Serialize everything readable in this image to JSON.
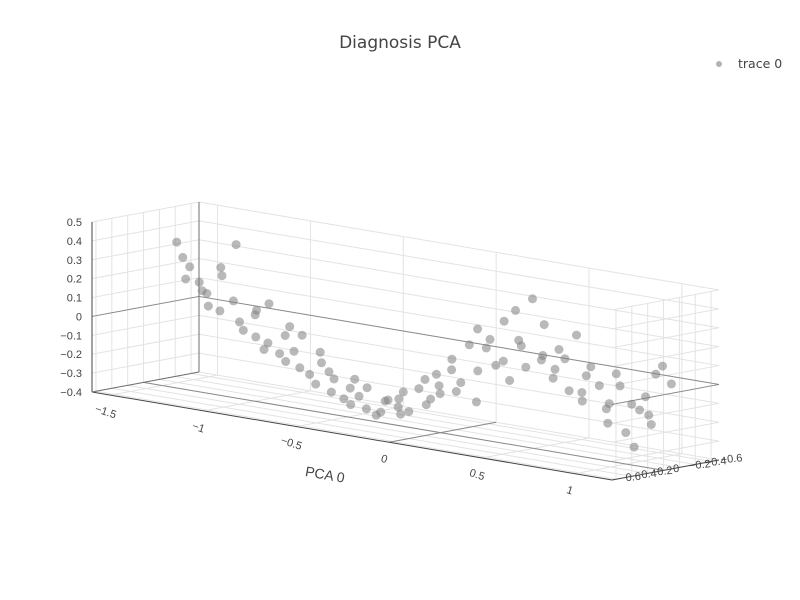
{
  "chart_data": {
    "type": "scatter",
    "title": "Diagnosis PCA",
    "legend": {
      "position": "top-right",
      "entries": [
        "trace 0"
      ]
    },
    "series": [
      {
        "name": "trace 0",
        "color": "#7f7f7f",
        "points": [
          {
            "x": -1.4,
            "y": 0.05,
            "z": 0.38
          },
          {
            "x": -1.38,
            "y": 0.02,
            "z": 0.3
          },
          {
            "x": -1.36,
            "y": -0.02,
            "z": 0.25
          },
          {
            "x": -1.33,
            "y": 0.1,
            "z": 0.2
          },
          {
            "x": -1.3,
            "y": 0.0,
            "z": 0.18
          },
          {
            "x": -1.28,
            "y": -0.05,
            "z": 0.12
          },
          {
            "x": -1.25,
            "y": 0.08,
            "z": 0.15
          },
          {
            "x": -1.22,
            "y": -0.1,
            "z": 0.22
          },
          {
            "x": -1.2,
            "y": 0.12,
            "z": 0.08
          },
          {
            "x": -1.18,
            "y": 0.02,
            "z": 0.05
          },
          {
            "x": -1.15,
            "y": -0.08,
            "z": 0.1
          },
          {
            "x": -1.12,
            "y": 0.15,
            "z": 0.3
          },
          {
            "x": -1.1,
            "y": -0.04,
            "z": 0.0
          },
          {
            "x": -1.08,
            "y": 0.05,
            "z": 0.42
          },
          {
            "x": -1.05,
            "y": -0.12,
            "z": 0.04
          },
          {
            "x": -1.02,
            "y": 0.1,
            "z": -0.02
          },
          {
            "x": -1.0,
            "y": -0.02,
            "z": 0.08
          },
          {
            "x": -0.97,
            "y": 0.06,
            "z": -0.05
          },
          {
            "x": -0.95,
            "y": -0.06,
            "z": 0.12
          },
          {
            "x": -0.93,
            "y": 0.0,
            "z": -0.08
          },
          {
            "x": -0.9,
            "y": 0.12,
            "z": -0.1
          },
          {
            "x": -0.88,
            "y": -0.1,
            "z": -0.04
          },
          {
            "x": -0.85,
            "y": 0.04,
            "z": -0.12
          },
          {
            "x": -0.83,
            "y": -0.04,
            "z": 0.02
          },
          {
            "x": -0.8,
            "y": 0.08,
            "z": -0.15
          },
          {
            "x": -0.78,
            "y": -0.08,
            "z": -0.02
          },
          {
            "x": -0.75,
            "y": 0.02,
            "z": -0.18
          },
          {
            "x": -0.73,
            "y": 0.14,
            "z": -0.08
          },
          {
            "x": -0.7,
            "y": -0.12,
            "z": -0.1
          },
          {
            "x": -0.68,
            "y": 0.06,
            "z": -0.2
          },
          {
            "x": -0.65,
            "y": -0.02,
            "z": -0.14
          },
          {
            "x": -0.63,
            "y": 0.1,
            "z": -0.24
          },
          {
            "x": -0.6,
            "y": -0.06,
            "z": -0.22
          },
          {
            "x": -0.58,
            "y": 0.02,
            "z": -0.28
          },
          {
            "x": -0.55,
            "y": 0.12,
            "z": -0.16
          },
          {
            "x": -0.53,
            "y": -0.1,
            "z": -0.26
          },
          {
            "x": -0.5,
            "y": 0.05,
            "z": -0.3
          },
          {
            "x": -0.48,
            "y": -0.04,
            "z": -0.2
          },
          {
            "x": -0.45,
            "y": 0.08,
            "z": -0.32
          },
          {
            "x": -0.43,
            "y": -0.08,
            "z": -0.24
          },
          {
            "x": -0.4,
            "y": 0.0,
            "z": -0.34
          },
          {
            "x": -0.38,
            "y": 0.14,
            "z": -0.26
          },
          {
            "x": -0.35,
            "y": -0.12,
            "z": -0.3
          },
          {
            "x": -0.33,
            "y": 0.04,
            "z": -0.36
          },
          {
            "x": -0.3,
            "y": -0.04,
            "z": -0.28
          },
          {
            "x": -0.28,
            "y": 0.1,
            "z": -0.33
          },
          {
            "x": -0.25,
            "y": -0.08,
            "z": -0.35
          },
          {
            "x": -0.22,
            "y": 0.02,
            "z": -0.3
          },
          {
            "x": -0.2,
            "y": 0.06,
            "z": -0.25
          },
          {
            "x": -0.18,
            "y": -0.02,
            "z": -0.32
          },
          {
            "x": -0.15,
            "y": 0.12,
            "z": -0.2
          },
          {
            "x": -0.12,
            "y": -0.1,
            "z": -0.28
          },
          {
            "x": -0.1,
            "y": 0.04,
            "z": -0.18
          },
          {
            "x": -0.08,
            "y": -0.06,
            "z": -0.24
          },
          {
            "x": -0.05,
            "y": 0.08,
            "z": -0.12
          },
          {
            "x": -0.02,
            "y": -0.04,
            "z": -0.2
          },
          {
            "x": 0.0,
            "y": 0.02,
            "z": -0.15
          },
          {
            "x": 0.02,
            "y": 0.1,
            "z": -0.08
          },
          {
            "x": 0.05,
            "y": -0.08,
            "z": -0.18
          },
          {
            "x": 0.08,
            "y": 0.05,
            "z": -0.05
          },
          {
            "x": 0.1,
            "y": -0.02,
            "z": -0.12
          },
          {
            "x": 0.12,
            "y": 0.14,
            "z": 0.02
          },
          {
            "x": 0.15,
            "y": -0.1,
            "z": -0.22
          },
          {
            "x": 0.18,
            "y": 0.06,
            "z": 0.1
          },
          {
            "x": 0.2,
            "y": 0.0,
            "z": -0.04
          },
          {
            "x": 0.22,
            "y": -0.06,
            "z": 0.08
          },
          {
            "x": 0.25,
            "y": 0.12,
            "z": 0.2
          },
          {
            "x": 0.28,
            "y": -0.04,
            "z": 0.0
          },
          {
            "x": 0.3,
            "y": 0.08,
            "z": 0.15
          },
          {
            "x": 0.32,
            "y": -0.12,
            "z": -0.08
          },
          {
            "x": 0.35,
            "y": 0.02,
            "z": 0.25
          },
          {
            "x": 0.38,
            "y": 0.1,
            "z": 0.05
          },
          {
            "x": 0.4,
            "y": -0.08,
            "z": 0.12
          },
          {
            "x": 0.42,
            "y": 0.04,
            "z": 0.32
          },
          {
            "x": 0.45,
            "y": -0.02,
            "z": 0.02
          },
          {
            "x": 0.48,
            "y": 0.14,
            "z": 0.18
          },
          {
            "x": 0.5,
            "y": -0.1,
            "z": 0.06
          },
          {
            "x": 0.52,
            "y": 0.06,
            "z": 0.4
          },
          {
            "x": 0.55,
            "y": 0.0,
            "z": 0.1
          },
          {
            "x": 0.58,
            "y": -0.06,
            "z": -0.02
          },
          {
            "x": 0.6,
            "y": 0.1,
            "z": 0.28
          },
          {
            "x": 0.62,
            "y": -0.04,
            "z": 0.14
          },
          {
            "x": 0.65,
            "y": 0.08,
            "z": 0.05
          },
          {
            "x": 0.68,
            "y": -0.12,
            "z": 0.22
          },
          {
            "x": 0.7,
            "y": 0.02,
            "z": -0.06
          },
          {
            "x": 0.72,
            "y": 0.12,
            "z": 0.12
          },
          {
            "x": 0.75,
            "y": -0.08,
            "z": 0.02
          },
          {
            "x": 0.78,
            "y": 0.04,
            "z": -0.1
          },
          {
            "x": 0.8,
            "y": -0.02,
            "z": 0.08
          },
          {
            "x": 0.82,
            "y": 0.14,
            "z": -0.04
          },
          {
            "x": 0.85,
            "y": -0.1,
            "z": -0.14
          },
          {
            "x": 0.88,
            "y": 0.06,
            "z": 0.0
          },
          {
            "x": 0.9,
            "y": 0.0,
            "z": -0.2
          },
          {
            "x": 0.92,
            "y": -0.06,
            "z": 0.06
          },
          {
            "x": 0.95,
            "y": 0.1,
            "z": -0.08
          },
          {
            "x": 0.98,
            "y": -0.04,
            "z": -0.24
          },
          {
            "x": 1.0,
            "y": 0.08,
            "z": 0.02
          },
          {
            "x": 1.02,
            "y": -0.12,
            "z": -0.12
          },
          {
            "x": 1.05,
            "y": 0.02,
            "z": -0.3
          },
          {
            "x": 1.08,
            "y": 0.12,
            "z": -0.06
          },
          {
            "x": 1.1,
            "y": -0.08,
            "z": -0.18
          },
          {
            "x": 1.12,
            "y": 0.04,
            "z": -0.02
          },
          {
            "x": 1.15,
            "y": -0.02,
            "z": 0.1
          },
          {
            "x": 1.18,
            "y": 0.14,
            "z": -0.1
          },
          {
            "x": 1.2,
            "y": -0.1,
            "z": 0.05
          },
          {
            "x": 1.22,
            "y": 0.06,
            "z": 0.16
          }
        ]
      }
    ],
    "axes": {
      "x": {
        "title": "PCA 0",
        "range": [
          -1.6,
          1.2
        ],
        "ticks": [
          -1.5,
          -1,
          -0.5,
          0,
          0.5,
          1
        ],
        "ticklabels": [
          "−1.5",
          "−1",
          "−0.5",
          "0",
          "0.5",
          "1"
        ]
      },
      "y": {
        "title": "",
        "range": [
          -0.7,
          0.65
        ],
        "ticks": [
          0.6,
          0.4,
          0.2,
          0,
          -0.2,
          -0.4,
          -0.6
        ],
        "ticklabels": [
          "0.6",
          "0.4",
          "0.2",
          "0",
          "−0.2",
          "−0.4",
          "−0.6"
        ]
      },
      "z": {
        "title": "",
        "range": [
          -0.4,
          0.5
        ],
        "ticks": [
          0.5,
          0.4,
          0.3,
          0.2,
          0.1,
          0,
          -0.1,
          -0.2,
          -0.3,
          -0.4
        ],
        "ticklabels": [
          "0.5",
          "0.4",
          "0.3",
          "0.2",
          "0.1",
          "0",
          "−0.1",
          "−0.2",
          "−0.3",
          "−0.4"
        ]
      }
    },
    "grid": true
  }
}
